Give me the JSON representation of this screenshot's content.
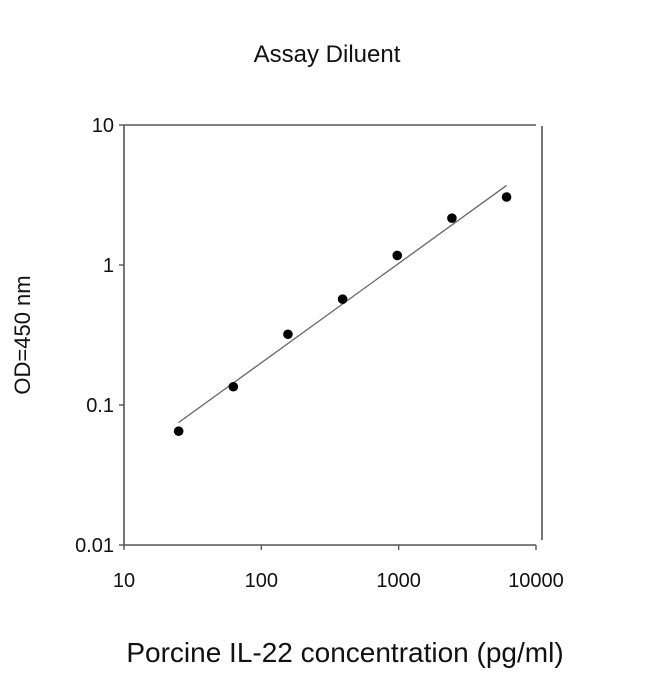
{
  "chart_data": {
    "type": "scatter",
    "title": "Assay Diluent",
    "xlabel": "Porcine IL-22 concentration (pg/ml)",
    "ylabel": "OD=450 nm",
    "xscale": "log",
    "yscale": "log",
    "xlim": [
      10,
      10000
    ],
    "ylim": [
      0.01,
      10
    ],
    "xticks": [
      10,
      100,
      1000,
      10000
    ],
    "xtick_labels": [
      "10",
      "100",
      "1000",
      "10000"
    ],
    "yticks": [
      10,
      1,
      0.1,
      0.01
    ],
    "ytick_labels": [
      "10",
      "1",
      "0.1",
      "0.01"
    ],
    "grid": false,
    "legend": null,
    "series": [
      {
        "name": "Assay Diluent",
        "x": [
          25,
          62.5,
          156.25,
          390.6,
          976.6,
          2441.4,
          6103.5
        ],
        "y": [
          0.065,
          0.135,
          0.32,
          0.57,
          1.17,
          2.16,
          3.06
        ],
        "marker": "filled-circle",
        "color": "#000000"
      }
    ],
    "fit_line": {
      "type": "linear-in-log-log",
      "x_start": 25,
      "y_start": 0.075,
      "x_end": 6103.5,
      "y_end": 3.7,
      "color": "#666666"
    }
  },
  "colors": {
    "axis": "#555555",
    "marker": "#000000",
    "fit": "#666666",
    "text": "#111111"
  }
}
